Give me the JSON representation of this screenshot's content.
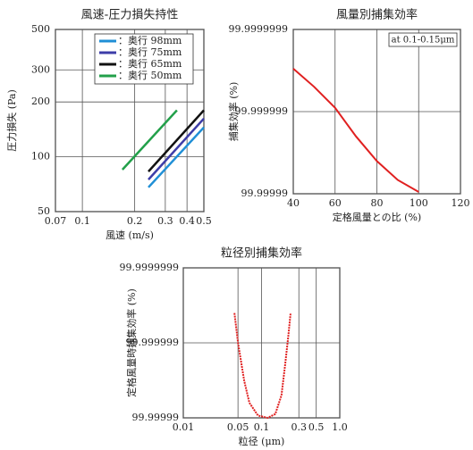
{
  "chart_data": [
    {
      "type": "line",
      "title": "風速-圧力損失持性",
      "xlabel": "風速 (m/s)",
      "ylabel": "圧力損失 (Pa)",
      "xscale": "log",
      "yscale": "log",
      "grid": true,
      "legend": "upper right",
      "xlim": [
        0.07,
        0.5
      ],
      "xticks": [
        0.07,
        0.1,
        0.2,
        0.3,
        0.4,
        0.5
      ],
      "ylim": [
        50,
        500
      ],
      "yticks": [
        50,
        100,
        200,
        300,
        500
      ],
      "series": [
        {
          "name": "：奥行 98mm",
          "color": "#1f8fd6",
          "x": [
            0.24,
            0.5
          ],
          "values": [
            68,
            145
          ]
        },
        {
          "name": "：奥行 75mm",
          "color": "#3d3da8",
          "x": [
            0.24,
            0.5
          ],
          "values": [
            75,
            162
          ]
        },
        {
          "name": "：奥行 65mm",
          "color": "#111111",
          "x": [
            0.24,
            0.5
          ],
          "values": [
            83,
            180
          ]
        },
        {
          "name": "：奥行 50mm",
          "color": "#22a04a",
          "x": [
            0.17,
            0.35
          ],
          "values": [
            85,
            180
          ]
        }
      ]
    },
    {
      "type": "line",
      "title": "風量別捕集効率",
      "xlabel": "定格風量との比 (%)",
      "ylabel": "捕集効率 (%)",
      "annotation": "at 0.1-0.15μm",
      "xscale": "linear",
      "yscale": "log-penetration",
      "grid": true,
      "xlim": [
        40,
        120
      ],
      "xticks": [
        40,
        60,
        80,
        100,
        120
      ],
      "ylim": [
        99.99999,
        99.9999999
      ],
      "yticks": [
        99.99999,
        99.999999,
        99.9999999
      ],
      "color": "#e02020",
      "x": [
        40,
        50,
        60,
        70,
        80,
        90,
        100
      ],
      "values": [
        99.9999997,
        99.9999995,
        99.9999991,
        99.999998,
        99.999996,
        99.9999932,
        99.9999905
      ]
    },
    {
      "type": "line",
      "title": "粒径別捕集効率",
      "xlabel": "粒径 (μm)",
      "ylabel": "定格風量時捕集効率 (%)",
      "xscale": "log",
      "yscale": "log-penetration",
      "grid": true,
      "xlim": [
        0.01,
        1
      ],
      "xticks": [
        0.01,
        0.05,
        0.1,
        0.3,
        0.5,
        {
          "value": 1,
          "label": "1.0"
        }
      ],
      "ylim": [
        99.99999,
        99.9999999
      ],
      "yticks": [
        99.99999,
        99.999999,
        99.9999999
      ],
      "color": "#e02020",
      "x": [
        0.045,
        0.05,
        0.06,
        0.07,
        0.09,
        0.12,
        0.15,
        0.18,
        0.2,
        0.22,
        0.235
      ],
      "values": [
        99.9999996,
        99.999999,
        99.9999968,
        99.9999937,
        99.9999907,
        99.99999,
        99.9999911,
        99.999995,
        99.999998,
        99.9999992,
        99.9999996
      ]
    }
  ]
}
